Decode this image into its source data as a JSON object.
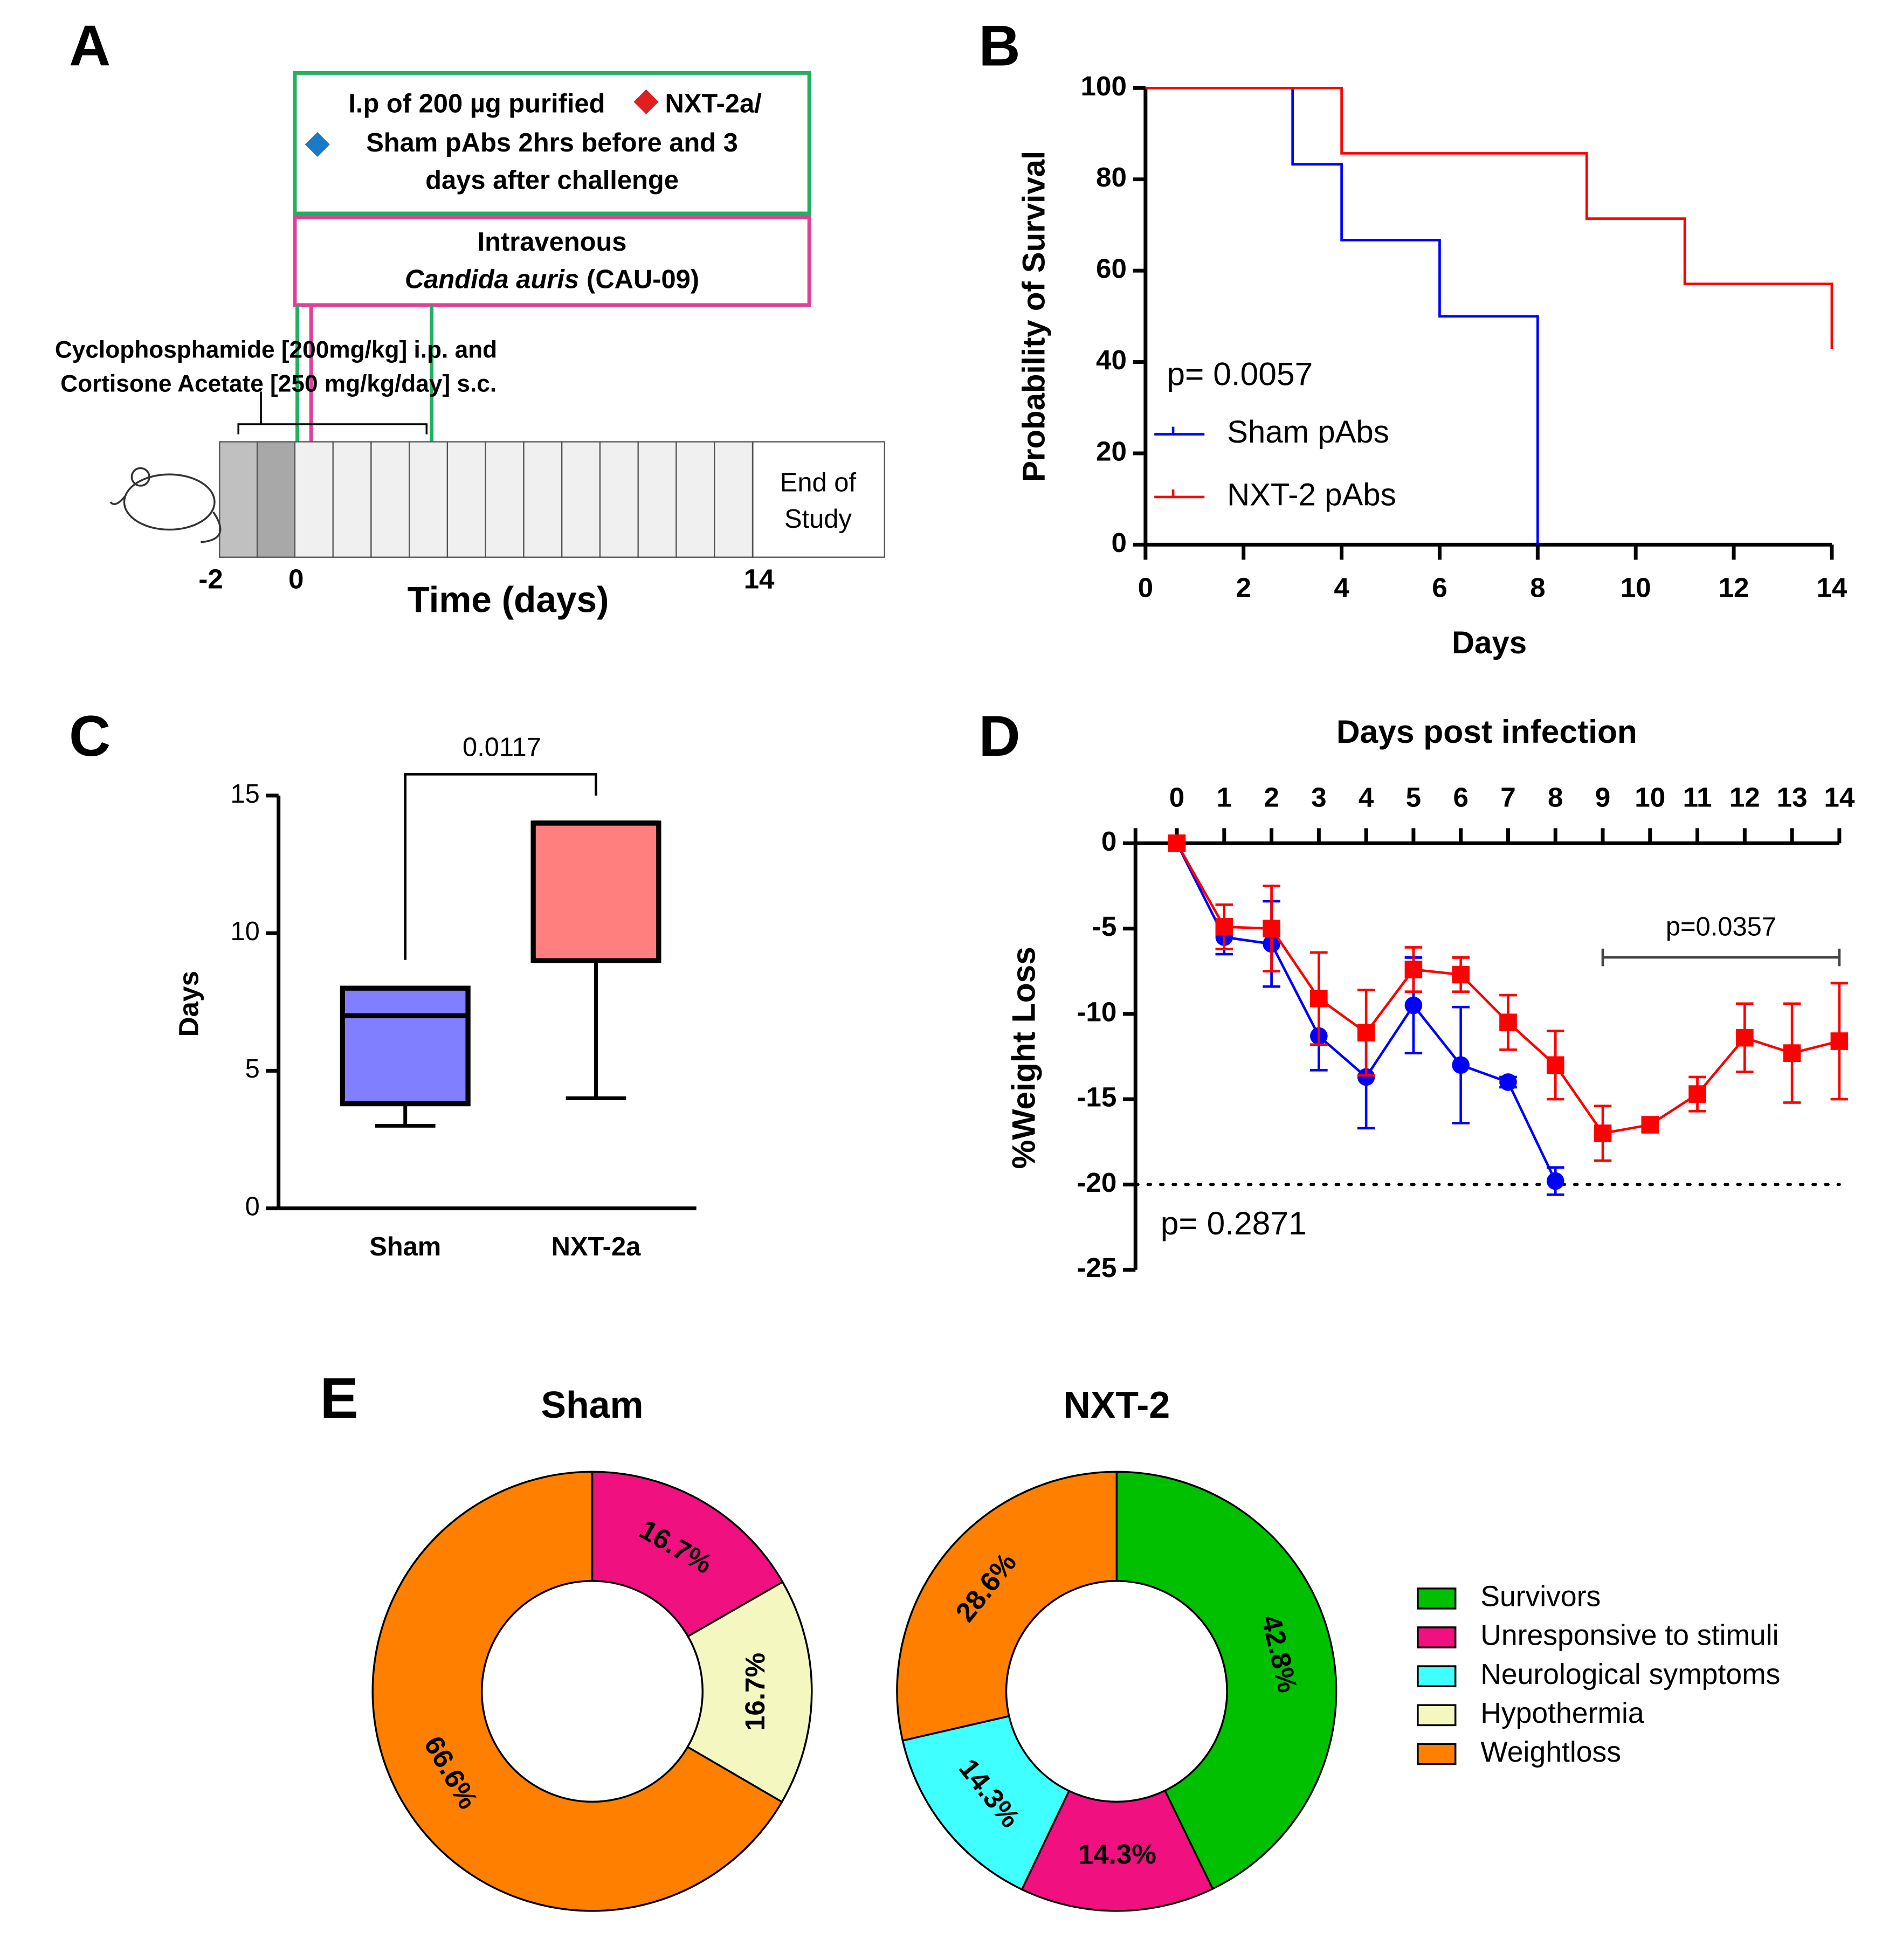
{
  "timeline": {
    "panel": "A",
    "treatment": [
      "I.p of 200 µg purified",
      "NXT-2a/",
      "Sham pAbs 2hrs before and 3",
      "days after challenge"
    ],
    "challenge": [
      "Intravenous",
      "Candida auris",
      "(CAU-09)"
    ],
    "immunosuppression": [
      "Cyclophosphamide [200mg/kg] i.p. and",
      "Cortisone Acetate [250 mg/kg/day] s.c."
    ],
    "end": [
      "End of",
      "Study"
    ],
    "ticks": [
      "-2",
      "0",
      "14"
    ],
    "xlabel": "Time (days)"
  },
  "chart_data": [
    {
      "panel": "B",
      "type": "step",
      "ylabel": "Probability of Survival",
      "xlabel": "Days",
      "annotation": "p= 0.0057",
      "xlim": [
        0,
        14
      ],
      "xticks": [
        0,
        2,
        4,
        6,
        8,
        10,
        12,
        14
      ],
      "ylim": [
        0,
        100
      ],
      "yticks": [
        0,
        20,
        40,
        60,
        80,
        100
      ],
      "series": [
        {
          "name": "Sham pAbs",
          "color": "#0000ff",
          "x": [
            0,
            3,
            4,
            6,
            8
          ],
          "values": [
            100,
            83.3,
            66.7,
            50,
            0
          ]
        },
        {
          "name": "NXT-2 pAbs",
          "color": "#ff0000",
          "x": [
            0,
            4,
            9,
            11,
            14
          ],
          "values": [
            100,
            85.7,
            71.4,
            57.1,
            42.9
          ]
        }
      ]
    },
    {
      "panel": "C",
      "type": "box",
      "ylabel": "Days",
      "annotation": "0.0117",
      "categories": [
        "Sham",
        "NXT-2a"
      ],
      "colors": [
        "#7f7fff",
        "#ff7f7f"
      ],
      "ylim": [
        0,
        15
      ],
      "yticks": [
        0,
        5,
        10,
        15
      ],
      "boxes": [
        {
          "min": 3,
          "q1": 3.8,
          "median": 7,
          "q3": 8,
          "max": 8
        },
        {
          "min": 4,
          "q1": 9,
          "median": 14,
          "q3": 14,
          "max": 14
        }
      ]
    },
    {
      "panel": "D",
      "type": "errorline",
      "xlabel": "Days post infection",
      "ylabel": "%Weight Loss",
      "annotations": [
        "p= 0.2871",
        "p=0.0357"
      ],
      "bracket": [
        9,
        14
      ],
      "hline": -20,
      "xlim": [
        0,
        14
      ],
      "xticks": [
        0,
        1,
        2,
        3,
        4,
        5,
        6,
        7,
        8,
        9,
        10,
        11,
        12,
        13,
        14
      ],
      "ylim": [
        -25,
        0
      ],
      "yticks": [
        0,
        -5,
        -10,
        -15,
        -20,
        -25
      ],
      "series": [
        {
          "name": "Sham",
          "color": "#0000ff",
          "marker": "circle",
          "x": [
            0,
            1,
            2,
            3,
            4,
            5,
            6,
            7,
            8
          ],
          "values": [
            0,
            -5.5,
            -5.9,
            -11.3,
            -13.7,
            -9.5,
            -13.0,
            -14.0,
            -19.8
          ],
          "errors": [
            0,
            1.0,
            2.5,
            2.0,
            3.0,
            2.8,
            3.4,
            0.3,
            0.8
          ]
        },
        {
          "name": "NXT-2",
          "color": "#ff0000",
          "marker": "square",
          "x": [
            0,
            1,
            2,
            3,
            4,
            5,
            6,
            7,
            8,
            9,
            10,
            11,
            12,
            13,
            14
          ],
          "values": [
            0,
            -4.9,
            -5.0,
            -9.1,
            -11.1,
            -7.4,
            -7.7,
            -10.5,
            -13.0,
            -17.0,
            -16.5,
            -14.7,
            -11.4,
            -12.3,
            -11.6
          ],
          "errors": [
            0,
            1.3,
            2.5,
            2.7,
            2.5,
            1.3,
            1.0,
            1.6,
            2.0,
            1.6,
            0.3,
            1.0,
            2.0,
            2.9,
            3.4
          ]
        }
      ]
    },
    {
      "panel": "E",
      "type": "donut",
      "categories": [
        "Survivors",
        "Unresponsive to stimuli",
        "Neurological symptoms",
        "Hypothermia",
        "Weightloss"
      ],
      "colors": [
        "#00c000",
        "#f0107f",
        "#40ffff",
        "#f4f8c0",
        "#ff8000"
      ],
      "series": [
        {
          "name": "Sham",
          "values": [
            0,
            16.7,
            0,
            16.7,
            66.6
          ],
          "value_labels": [
            null,
            "16.7%",
            null,
            "16.7%",
            "66.6%"
          ]
        },
        {
          "name": "NXT-2",
          "values": [
            42.8,
            14.3,
            14.3,
            0,
            28.6
          ],
          "value_labels": [
            "42.8%",
            "14.3%",
            "14.3%",
            null,
            "28.6%"
          ]
        }
      ]
    }
  ]
}
